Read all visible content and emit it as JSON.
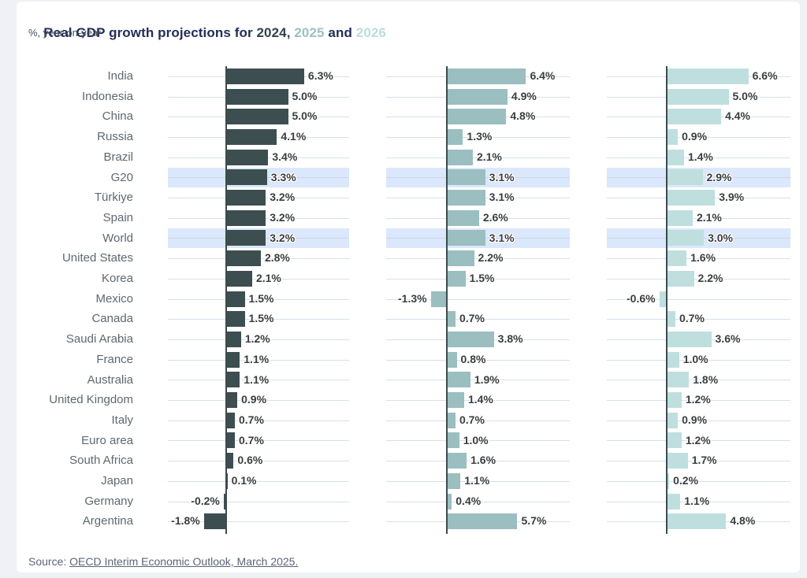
{
  "title": {
    "prefix": "Real GDP growth projections for ",
    "year_2024": "2024, ",
    "year_2025": "2025",
    "and_text": " and ",
    "year_2026": "2026"
  },
  "subtitle": "%, year-on-year",
  "source": {
    "label": "Source: ",
    "link_text": "OECD Interim Economic Outlook, March 2025."
  },
  "colors": {
    "series_2024": "#3d4e50",
    "series_2025": "#9bbec0",
    "series_2026": "#bfdfdf",
    "highlight_band": "#dbe8fb",
    "title_navy": "#232e58",
    "gridline": "#d7dfee",
    "axis": "#3c4b4e"
  },
  "chart_data": {
    "type": "bar",
    "orientation": "horizontal",
    "title": "Real GDP growth projections for 2024, 2025 and 2026",
    "subtitle": "%, year-on-year",
    "value_suffix": "%",
    "xlim": [
      -2,
      7
    ],
    "grid": true,
    "categories": [
      "India",
      "Indonesia",
      "China",
      "Russia",
      "Brazil",
      "G20",
      "Türkiye",
      "Spain",
      "World",
      "United States",
      "Korea",
      "Mexico",
      "Canada",
      "Saudi Arabia",
      "France",
      "Australia",
      "United Kingdom",
      "Italy",
      "Euro area",
      "South Africa",
      "Japan",
      "Germany",
      "Argentina"
    ],
    "highlighted_categories": [
      "G20",
      "World"
    ],
    "series": [
      {
        "name": "2024",
        "color": "#3d4e50",
        "values": [
          6.3,
          5.0,
          5.0,
          4.1,
          3.4,
          3.3,
          3.2,
          3.2,
          3.2,
          2.8,
          2.1,
          1.5,
          1.5,
          1.2,
          1.1,
          1.1,
          0.9,
          0.7,
          0.7,
          0.6,
          0.1,
          -0.2,
          -1.8
        ]
      },
      {
        "name": "2025",
        "color": "#9bbec0",
        "values": [
          6.4,
          4.9,
          4.8,
          1.3,
          2.1,
          3.1,
          3.1,
          2.6,
          3.1,
          2.2,
          1.5,
          -1.3,
          0.7,
          3.8,
          0.8,
          1.9,
          1.4,
          0.7,
          1.0,
          1.6,
          1.1,
          0.4,
          5.7
        ]
      },
      {
        "name": "2026",
        "color": "#bfdfdf",
        "values": [
          6.6,
          5.0,
          4.4,
          0.9,
          1.4,
          2.9,
          3.9,
          2.1,
          3.0,
          1.6,
          2.2,
          -0.6,
          0.7,
          3.6,
          1.0,
          1.8,
          1.2,
          0.9,
          1.2,
          1.7,
          0.2,
          1.1,
          4.8
        ]
      }
    ]
  }
}
